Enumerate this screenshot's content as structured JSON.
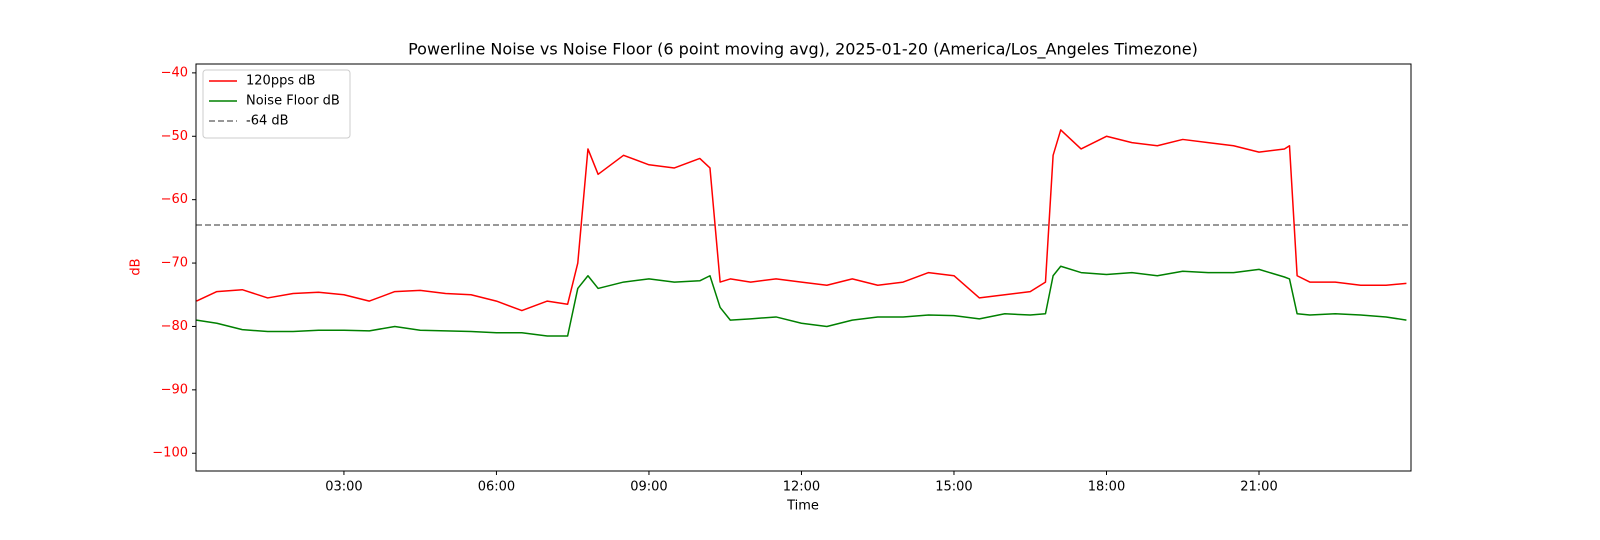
{
  "chart_data": {
    "type": "line",
    "title": "Powerline Noise vs Noise Floor (6 point moving avg), 2025-01-20 (America/Los_Angeles Timezone)",
    "xlabel": "Time",
    "ylabel": "dB",
    "axis_color": "red",
    "x": [
      0.1,
      0.5,
      1,
      1.5,
      2,
      2.5,
      3,
      3.5,
      4,
      4.5,
      5,
      5.5,
      6,
      6.5,
      7,
      7.4,
      7.6,
      7.8,
      8,
      8.5,
      9,
      9.5,
      10,
      10.2,
      10.4,
      10.6,
      11,
      11.5,
      12,
      12.5,
      13,
      13.5,
      14,
      14.5,
      15,
      15.5,
      16,
      16.5,
      16.8,
      16.95,
      17.1,
      17.5,
      18,
      18.5,
      19,
      19.5,
      20,
      20.5,
      21,
      21.5,
      21.6,
      21.75,
      22,
      22.5,
      23,
      23.5,
      23.9
    ],
    "series": [
      {
        "name": "120pps dB",
        "color": "#ff0000",
        "values": [
          -76,
          -74.5,
          -74.2,
          -75.5,
          -74.8,
          -74.6,
          -75,
          -76,
          -74.5,
          -74.3,
          -74.8,
          -75,
          -76,
          -77.5,
          -76,
          -76.5,
          -70,
          -52,
          -56,
          -53,
          -54.5,
          -55,
          -53.5,
          -55,
          -73,
          -72.5,
          -73,
          -72.5,
          -73,
          -73.5,
          -72.5,
          -73.5,
          -73,
          -71.5,
          -72,
          -75.5,
          -75,
          -74.5,
          -73,
          -53,
          -49,
          -52,
          -50,
          -51,
          -51.5,
          -50.5,
          -51,
          -51.5,
          -52.5,
          -52,
          -51.5,
          -72,
          -73,
          -73,
          -73.5,
          -73.5,
          -73.2
        ]
      },
      {
        "name": "Noise Floor dB",
        "color": "#008000",
        "values": [
          -79,
          -79.5,
          -80.5,
          -80.8,
          -80.8,
          -80.6,
          -80.6,
          -80.7,
          -80,
          -80.6,
          -80.7,
          -80.8,
          -81,
          -81,
          -81.5,
          -81.5,
          -74,
          -72,
          -74,
          -73,
          -72.5,
          -73,
          -72.8,
          -72,
          -77,
          -79,
          -78.8,
          -78.5,
          -79.5,
          -80,
          -79,
          -78.5,
          -78.5,
          -78.2,
          -78.3,
          -78.8,
          -78,
          -78.2,
          -78,
          -72,
          -70.5,
          -71.5,
          -71.8,
          -71.5,
          -72,
          -71.3,
          -71.5,
          -71.5,
          -71,
          -72.2,
          -72.5,
          -78,
          -78.2,
          -78,
          -78.2,
          -78.5,
          -79
        ]
      }
    ],
    "hlines": [
      {
        "name": "-64 dB",
        "value": -64,
        "color": "#777777",
        "style": "dashed"
      }
    ],
    "xlim": [
      0.09,
      23.99
    ],
    "xticks": [
      {
        "value": 3,
        "label": "03:00"
      },
      {
        "value": 6,
        "label": "06:00"
      },
      {
        "value": 9,
        "label": "09:00"
      },
      {
        "value": 12,
        "label": "12:00"
      },
      {
        "value": 15,
        "label": "15:00"
      },
      {
        "value": 18,
        "label": "18:00"
      },
      {
        "value": 21,
        "label": "21:00"
      }
    ],
    "ylim": [
      -102.8,
      -38.6
    ],
    "yticks": [
      {
        "value": -100,
        "label": "−100"
      },
      {
        "value": -90,
        "label": "−90"
      },
      {
        "value": -80,
        "label": "−80"
      },
      {
        "value": -70,
        "label": "−70"
      },
      {
        "value": -60,
        "label": "−60"
      },
      {
        "value": -50,
        "label": "−50"
      },
      {
        "value": -40,
        "label": "−40"
      }
    ],
    "legend": "upper left",
    "grid": false
  }
}
